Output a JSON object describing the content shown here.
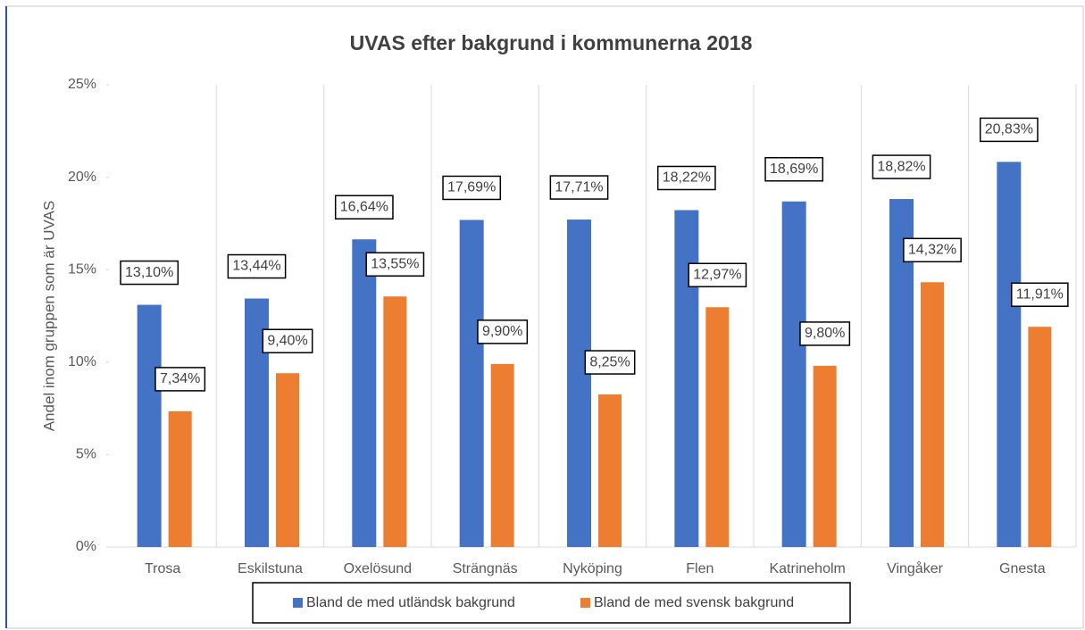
{
  "chart_data": {
    "type": "bar",
    "title": "UVAS efter bakgrund i kommunerna 2018",
    "y_axis_label": "Andel inom gruppen som är UVAS",
    "categories": [
      "Trosa",
      "Eskilstuna",
      "Oxelösund",
      "Strängnäs",
      "Nyköping",
      "Flen",
      "Katrineholm",
      "Vingåker",
      "Gnesta"
    ],
    "series": [
      {
        "name": "Bland de med utländsk bakgrund",
        "color": "#4472c4",
        "values": [
          13.1,
          13.44,
          16.64,
          17.69,
          17.71,
          18.22,
          18.69,
          18.82,
          20.83
        ],
        "value_labels": [
          "13,10%",
          "13,44%",
          "16,64%",
          "17,69%",
          "17,71%",
          "18,22%",
          "18,69%",
          "18,82%",
          "20,83%"
        ]
      },
      {
        "name": "Bland de med svensk bakgrund",
        "color": "#ed7d31",
        "values": [
          7.34,
          9.4,
          13.55,
          9.9,
          8.25,
          12.97,
          9.8,
          14.32,
          11.91
        ],
        "value_labels": [
          "7,34%",
          "9,40%",
          "13,55%",
          "9,90%",
          "8,25%",
          "12,97%",
          "9,80%",
          "14,32%",
          "11,91%"
        ]
      }
    ],
    "ylim": [
      0,
      25
    ],
    "yticks": [
      {
        "value": 0,
        "label": "0%"
      },
      {
        "value": 5,
        "label": "5%"
      },
      {
        "value": 10,
        "label": "10%"
      },
      {
        "value": 15,
        "label": "15%"
      },
      {
        "value": 20,
        "label": "20%"
      },
      {
        "value": 25,
        "label": "25%"
      }
    ],
    "legend": "bottom"
  }
}
